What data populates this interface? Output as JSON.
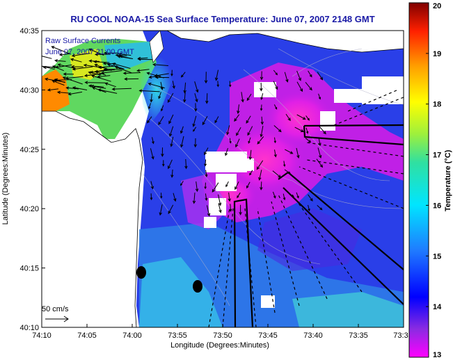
{
  "title": "RU COOL  NOAA-15  Sea Surface Temperature:  June 07, 2007 2148 GMT",
  "legend": {
    "line1": "Raw Surface Currents",
    "line2": "June 07, 2007 21:00 GMT"
  },
  "scale_label": "50 cm/s",
  "chart_data": {
    "type": "heatmap",
    "xlabel": "Longitude (Degrees:Minutes)",
    "ylabel": "Latitude (Degrees:Minutes)",
    "x_ticks": [
      "74:10",
      "74:05",
      "74:00",
      "73:55",
      "73:50",
      "73:45",
      "73:40",
      "73:35",
      "73:3"
    ],
    "y_ticks": [
      "40:35",
      "40:30",
      "40:25",
      "40:20",
      "40:15",
      "40:10"
    ],
    "colorbar": {
      "label": "Temperature (°C)",
      "min": 13,
      "max": 20,
      "ticks": [
        "20",
        "19",
        "18",
        "17",
        "16",
        "15",
        "14",
        "13"
      ]
    }
  },
  "colors": {
    "title": "#1a1aa6",
    "land": "#ffffff",
    "vectors": "#000000"
  }
}
